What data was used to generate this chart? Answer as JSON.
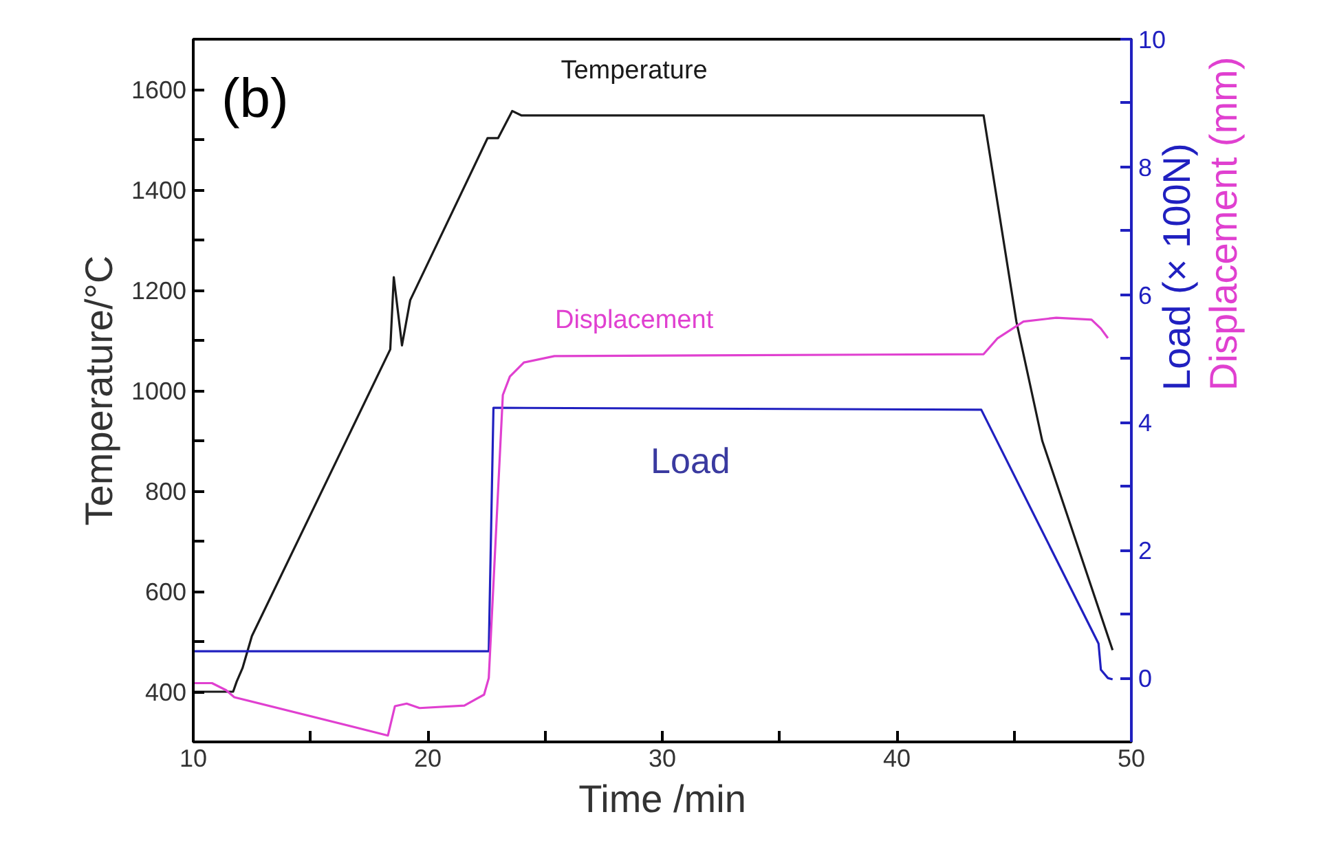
{
  "chart_data": {
    "type": "line",
    "xlabel": "Time /min",
    "ylabel": "Temperature/°C",
    "y2label": "Load  (× 100N)",
    "y3label": "Displacement (mm)",
    "xlim": [
      10,
      50
    ],
    "xticks": [
      10,
      {
        "value": 15,
        "label": null
      },
      20,
      {
        "value": 25,
        "label": null
      },
      30,
      {
        "value": 35,
        "label": null
      },
      40,
      {
        "value": 45,
        "label": null
      },
      50
    ],
    "ylim": [
      300,
      1700
    ],
    "yticks": [
      400,
      {
        "value": 500,
        "label": null
      },
      600,
      {
        "value": 700,
        "label": null
      },
      800,
      {
        "value": 900,
        "label": null
      },
      1000,
      {
        "value": 1100,
        "label": null
      },
      1200,
      {
        "value": 1300,
        "label": null
      },
      1400,
      {
        "value": 1500,
        "label": null
      },
      1600
    ],
    "y2lim": [
      -1,
      10
    ],
    "y2ticks": [
      0,
      {
        "value": 1,
        "label": null
      },
      2,
      {
        "value": 3,
        "label": null
      },
      4,
      {
        "value": 5,
        "label": null
      },
      6,
      {
        "value": 7,
        "label": null
      },
      8,
      {
        "value": 9,
        "label": null
      },
      10
    ],
    "marker": "none",
    "line_style": "solid",
    "annotations": [
      "(b)"
    ],
    "series": [
      {
        "name": "Temperature",
        "color": "#1a1a1a",
        "x": [
          10,
          11.7,
          11.85,
          12.1,
          12.5,
          18.4,
          18.55,
          18.9,
          19.25,
          22.55,
          23.0,
          23.6,
          24.0,
          43.7,
          45.1,
          46.2,
          49.2
        ],
        "values": [
          400,
          400,
          420,
          447,
          511,
          1082,
          1226,
          1090,
          1180,
          1503,
          1503,
          1557,
          1548,
          1548,
          1137,
          900,
          483
        ]
      },
      {
        "name": "Load",
        "color": "#2020c0",
        "axis": "y2",
        "x": [
          10,
          22.6,
          22.8,
          23.0,
          43.6,
          48.6,
          48.7,
          49.0,
          49.2
        ],
        "values": [
          0.42,
          0.42,
          4.23,
          4.23,
          4.2,
          0.54,
          0.13,
          0.0,
          -0.02
        ]
      },
      {
        "name": "Displacement",
        "color": "#e040d0",
        "axis": "y2",
        "x": [
          10,
          10.8,
          11.4,
          11.75,
          18.3,
          18.6,
          19.1,
          19.65,
          21.56,
          22.4,
          22.6,
          23.2,
          23.5,
          24.1,
          25.4,
          43.7,
          44.3,
          45.4,
          46.8,
          48.3,
          48.7,
          49.0
        ],
        "values": [
          -0.08,
          -0.08,
          -0.19,
          -0.3,
          -0.9,
          -0.44,
          -0.4,
          -0.47,
          -0.43,
          -0.26,
          0.0,
          4.43,
          4.72,
          4.94,
          5.04,
          5.07,
          5.32,
          5.58,
          5.64,
          5.61,
          5.47,
          5.32
        ]
      }
    ]
  }
}
